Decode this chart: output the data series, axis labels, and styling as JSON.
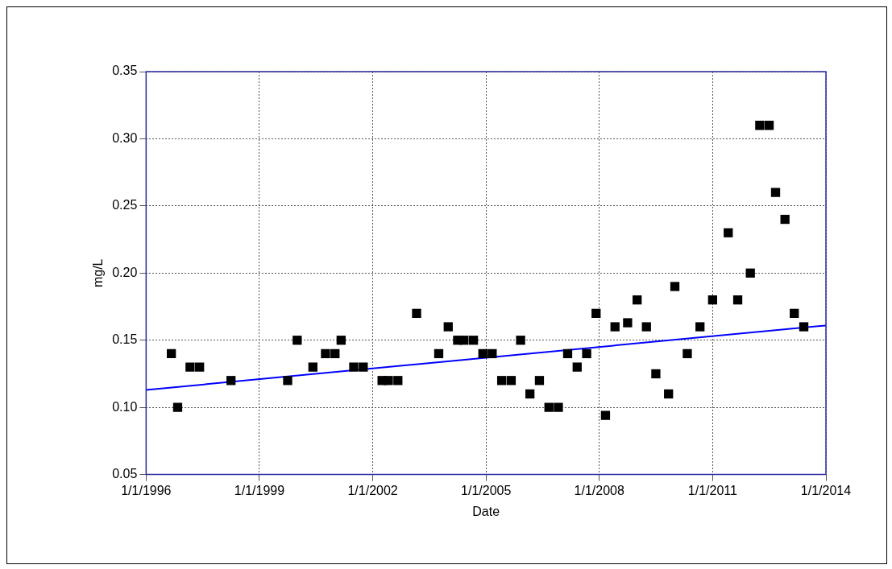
{
  "chart_data": {
    "type": "scatter",
    "xlabel": "Date",
    "ylabel": "mg/L",
    "xlim": [
      "1996-01-01",
      "2014-01-01"
    ],
    "xticks": [
      {
        "value": "1996-01-01",
        "label": "1/1/1996"
      },
      {
        "value": "1999-01-01",
        "label": "1/1/1999"
      },
      {
        "value": "2002-01-01",
        "label": "1/1/2002"
      },
      {
        "value": "2005-01-01",
        "label": "1/1/2005"
      },
      {
        "value": "2008-01-01",
        "label": "1/1/2008"
      },
      {
        "value": "2011-01-01",
        "label": "1/1/2011"
      },
      {
        "value": "2014-01-01",
        "label": "1/1/2014"
      }
    ],
    "ylim": [
      0.05,
      0.35
    ],
    "yticks": [
      {
        "value": 0.05,
        "label": "0.05"
      },
      {
        "value": 0.1,
        "label": "0.10"
      },
      {
        "value": 0.15,
        "label": "0.15"
      },
      {
        "value": 0.2,
        "label": "0.20"
      },
      {
        "value": 0.25,
        "label": "0.25"
      },
      {
        "value": 0.3,
        "label": "0.30"
      },
      {
        "value": 0.35,
        "label": "0.35"
      }
    ],
    "grid": true,
    "legend": false,
    "series": [
      {
        "color": "#000000",
        "marker": "square",
        "x": [
          "1996-09",
          "1996-11",
          "1997-03",
          "1997-06",
          "1998-04",
          "1999-10",
          "2000-01",
          "2000-06",
          "2000-10",
          "2001-01",
          "2001-03",
          "2001-07",
          "2001-10",
          "2002-04",
          "2002-06",
          "2002-09",
          "2003-03",
          "2003-10",
          "2004-01",
          "2004-04",
          "2004-06",
          "2004-09",
          "2004-12",
          "2005-03",
          "2005-06",
          "2005-09",
          "2005-12",
          "2006-03",
          "2006-06",
          "2006-09",
          "2006-12",
          "2007-03",
          "2007-06",
          "2007-09",
          "2007-12",
          "2008-03",
          "2008-06",
          "2008-10",
          "2009-01",
          "2009-04",
          "2009-07",
          "2009-11",
          "2010-01",
          "2010-05",
          "2010-09",
          "2011-01",
          "2011-06",
          "2011-09",
          "2012-01",
          "2012-04",
          "2012-07",
          "2012-09",
          "2012-12",
          "2013-03",
          "2013-06"
        ],
        "values": [
          0.14,
          0.1,
          0.13,
          0.13,
          0.12,
          0.12,
          0.15,
          0.13,
          0.14,
          0.14,
          0.15,
          0.13,
          0.13,
          0.12,
          0.12,
          0.12,
          0.17,
          0.14,
          0.16,
          0.15,
          0.15,
          0.15,
          0.14,
          0.14,
          0.12,
          0.12,
          0.15,
          0.11,
          0.12,
          0.1,
          0.1,
          0.14,
          0.13,
          0.14,
          0.17,
          0.094,
          0.16,
          0.163,
          0.18,
          0.16,
          0.125,
          0.11,
          0.19,
          0.14,
          0.16,
          0.18,
          0.23,
          0.18,
          0.2,
          0.31,
          0.31,
          0.26,
          0.24,
          0.17,
          0.16
        ]
      },
      {
        "type": "line",
        "color": "#0000ff",
        "marker": "none",
        "line_style": "solid",
        "x": [
          "1996-01-01",
          "2014-01-01"
        ],
        "values": [
          0.113,
          0.161
        ]
      }
    ]
  }
}
